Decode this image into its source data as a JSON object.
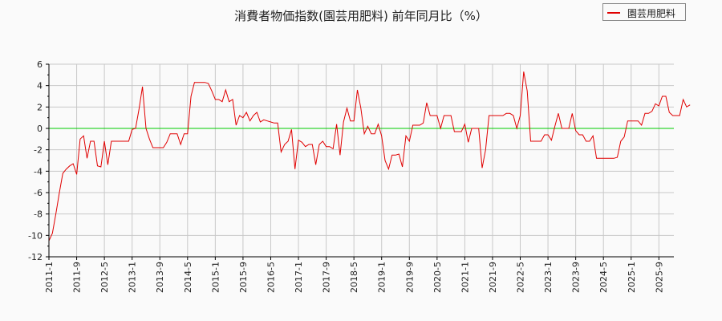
{
  "title": "消費者物価指数(園芸用肥料) 前年同月比（%）",
  "legend": {
    "label": "園芸用肥料",
    "color": "#e00000"
  },
  "colors": {
    "series": "#e00000",
    "zero_line": "#00cc00",
    "grid": "#c8c8c8",
    "axis": "#000000",
    "background": "#fafafa"
  },
  "chart_data": {
    "type": "line",
    "title": "消費者物価指数(園芸用肥料) 前年同月比（%）",
    "xlabel": "",
    "ylabel": "",
    "ylim": [
      -12,
      6
    ],
    "yticks": [
      6,
      4,
      2,
      0,
      -2,
      -4,
      -6,
      -8,
      -10,
      -12
    ],
    "grid": true,
    "legend_position": "top-right",
    "x_tick_labels": [
      "2011-1",
      "2011-9",
      "2012-5",
      "2013-1",
      "2013-9",
      "2014-5",
      "2015-1",
      "2015-9",
      "2016-5",
      "2017-1",
      "2017-9",
      "2018-5",
      "2019-1",
      "2019-9",
      "2020-5",
      "2021-1",
      "2021-9",
      "2022-5",
      "2023-1",
      "2023-9",
      "2024-5",
      "2025-1",
      "2025-9"
    ],
    "x_start": "2011-1",
    "x_step": "1 month",
    "series": [
      {
        "name": "園芸用肥料",
        "color": "#e00000",
        "values": [
          -10.5,
          -9.8,
          -8.0,
          -6.0,
          -4.2,
          -3.8,
          -3.5,
          -3.3,
          -4.3,
          -1.0,
          -0.7,
          -2.8,
          -1.2,
          -1.2,
          -3.5,
          -3.6,
          -1.2,
          -3.4,
          -1.2,
          -1.2,
          -1.2,
          -1.2,
          -1.2,
          -1.2,
          -0.1,
          0.0,
          1.8,
          3.9,
          0.0,
          -1.0,
          -1.8,
          -1.8,
          -1.8,
          -1.8,
          -1.3,
          -0.5,
          -0.5,
          -0.5,
          -1.5,
          -0.5,
          -0.5,
          3.0,
          4.3,
          4.3,
          4.3,
          4.3,
          4.2,
          3.5,
          2.7,
          2.7,
          2.5,
          3.6,
          2.5,
          2.7,
          0.3,
          1.2,
          1.0,
          1.5,
          0.7,
          1.2,
          1.5,
          0.6,
          0.8,
          0.7,
          0.6,
          0.5,
          0.5,
          -2.2,
          -1.5,
          -1.2,
          -0.1,
          -3.8,
          -1.1,
          -1.3,
          -1.7,
          -1.5,
          -1.5,
          -3.4,
          -1.5,
          -1.2,
          -1.7,
          -1.7,
          -1.9,
          0.4,
          -2.5,
          0.6,
          1.9,
          0.7,
          0.7,
          3.6,
          1.9,
          -0.5,
          0.2,
          -0.5,
          -0.5,
          0.4,
          -0.7,
          -3.0,
          -3.8,
          -2.5,
          -2.5,
          -2.4,
          -3.6,
          -0.7,
          -1.2,
          0.3,
          0.3,
          0.3,
          0.5,
          2.4,
          1.2,
          1.2,
          1.2,
          0.0,
          1.2,
          1.2,
          1.2,
          -0.3,
          -0.3,
          -0.3,
          0.4,
          -1.3,
          0.0,
          0.0,
          0.0,
          -3.7,
          -2.0,
          1.2,
          1.2,
          1.2,
          1.2,
          1.2,
          1.4,
          1.4,
          1.2,
          0.0,
          1.2,
          5.3,
          3.5,
          -1.2,
          -1.2,
          -1.2,
          -1.2,
          -0.6,
          -0.6,
          -1.1,
          0.2,
          1.4,
          0.0,
          0.0,
          0.0,
          1.4,
          -0.2,
          -0.6,
          -0.6,
          -1.2,
          -1.2,
          -0.7,
          -2.8,
          -2.8,
          -2.8,
          -2.8,
          -2.8,
          -2.8,
          -2.7,
          -1.2,
          -0.8,
          0.7,
          0.7,
          0.7,
          0.7,
          0.3,
          1.4,
          1.4,
          1.6,
          2.3,
          2.1,
          3.0,
          3.0,
          1.5,
          1.2,
          1.2,
          1.2,
          2.7,
          2.0,
          2.2
        ]
      }
    ]
  }
}
